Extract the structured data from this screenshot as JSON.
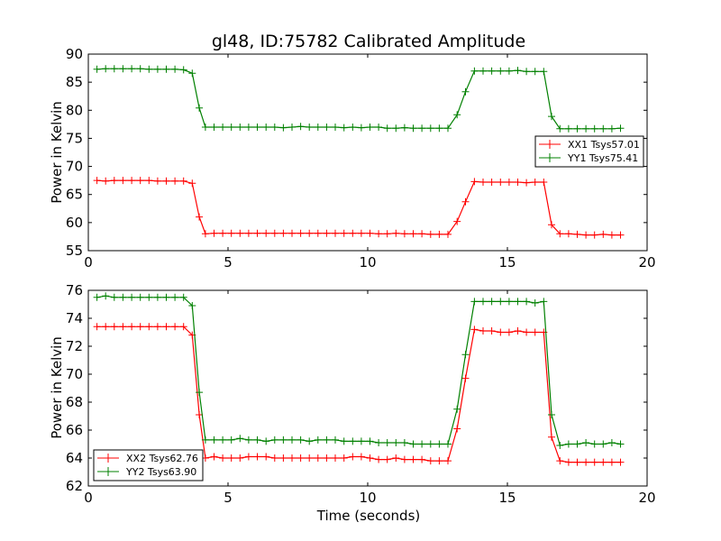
{
  "chart_data": {
    "title": "gl48, ID:75782 Calibrated Amplitude",
    "xlabel": "Time (seconds)",
    "type": "line",
    "x": [
      0.31,
      0.62,
      0.93,
      1.24,
      1.55,
      1.86,
      2.17,
      2.48,
      2.79,
      3.1,
      3.41,
      3.72,
      3.97,
      4.19,
      4.5,
      4.81,
      5.12,
      5.43,
      5.74,
      6.05,
      6.36,
      6.67,
      6.98,
      7.29,
      7.6,
      7.91,
      8.22,
      8.53,
      8.84,
      9.15,
      9.46,
      9.77,
      10.08,
      10.39,
      10.7,
      11.01,
      11.32,
      11.63,
      11.94,
      12.25,
      12.56,
      12.87,
      13.2,
      13.5,
      13.82,
      14.13,
      14.44,
      14.75,
      15.06,
      15.37,
      15.68,
      15.99,
      16.3,
      16.58,
      16.88,
      17.19,
      17.5,
      17.81,
      18.12,
      18.43,
      18.74,
      19.05
    ],
    "panels": [
      {
        "ylabel": "Power in Kelvin",
        "xlim": [
          0,
          20
        ],
        "ylim": [
          55,
          90
        ],
        "xticks": [
          "0",
          "5",
          "10",
          "15",
          "20"
        ],
        "yticks": [
          "55",
          "60",
          "65",
          "70",
          "75",
          "80",
          "85",
          "90"
        ],
        "legend_position": "center-right",
        "series": [
          {
            "name": "XX1 Tsys57.01",
            "color": "#ff0000",
            "values": [
              67.5,
              67.4,
              67.5,
              67.5,
              67.5,
              67.5,
              67.5,
              67.4,
              67.4,
              67.4,
              67.4,
              67.0,
              61.0,
              58.0,
              58.1,
              58.1,
              58.1,
              58.1,
              58.1,
              58.1,
              58.1,
              58.1,
              58.1,
              58.1,
              58.1,
              58.1,
              58.1,
              58.1,
              58.1,
              58.1,
              58.1,
              58.1,
              58.1,
              58.0,
              58.0,
              58.1,
              58.0,
              58.0,
              58.0,
              57.9,
              57.9,
              57.9,
              60.2,
              63.7,
              67.3,
              67.2,
              67.2,
              67.2,
              67.2,
              67.2,
              67.1,
              67.2,
              67.2,
              59.6,
              58.0,
              58.0,
              57.9,
              57.8,
              57.8,
              57.9,
              57.8,
              57.8
            ]
          },
          {
            "name": "YY1 Tsys75.41",
            "color": "#008000",
            "values": [
              87.3,
              87.4,
              87.4,
              87.4,
              87.4,
              87.4,
              87.3,
              87.3,
              87.3,
              87.3,
              87.2,
              86.6,
              80.4,
              77.0,
              77.0,
              77.0,
              77.0,
              77.0,
              77.0,
              77.0,
              77.0,
              77.0,
              76.9,
              77.0,
              77.1,
              77.0,
              77.0,
              77.0,
              77.0,
              76.9,
              77.0,
              76.9,
              77.0,
              77.0,
              76.8,
              76.8,
              76.9,
              76.8,
              76.8,
              76.8,
              76.8,
              76.8,
              79.2,
              83.3,
              87.0,
              87.0,
              87.0,
              87.0,
              87.0,
              87.1,
              86.9,
              86.9,
              86.9,
              78.9,
              76.7,
              76.7,
              76.7,
              76.7,
              76.7,
              76.7,
              76.7,
              76.8
            ]
          }
        ]
      },
      {
        "ylabel": "Power in Kelvin",
        "xlabel": "Time (seconds)",
        "xlim": [
          0,
          20
        ],
        "ylim": [
          62,
          76
        ],
        "xticks": [
          "0",
          "5",
          "10",
          "15",
          "20"
        ],
        "yticks": [
          "62",
          "64",
          "66",
          "68",
          "70",
          "72",
          "74",
          "76"
        ],
        "legend_position": "lower-left",
        "series": [
          {
            "name": "XX2 Tsys62.76",
            "color": "#ff0000",
            "values": [
              73.4,
              73.4,
              73.4,
              73.4,
              73.4,
              73.4,
              73.4,
              73.4,
              73.4,
              73.4,
              73.4,
              72.8,
              67.1,
              64.0,
              64.1,
              64.0,
              64.0,
              64.0,
              64.1,
              64.1,
              64.1,
              64.0,
              64.0,
              64.0,
              64.0,
              64.0,
              64.0,
              64.0,
              64.0,
              64.0,
              64.1,
              64.1,
              64.0,
              63.9,
              63.9,
              64.0,
              63.9,
              63.9,
              63.9,
              63.8,
              63.8,
              63.8,
              66.1,
              69.7,
              73.2,
              73.1,
              73.1,
              73.0,
              73.0,
              73.1,
              73.0,
              73.0,
              73.0,
              65.5,
              63.8,
              63.7,
              63.7,
              63.7,
              63.7,
              63.7,
              63.7,
              63.7
            ]
          },
          {
            "name": "YY2 Tsys63.90",
            "color": "#008000",
            "values": [
              75.5,
              75.6,
              75.5,
              75.5,
              75.5,
              75.5,
              75.5,
              75.5,
              75.5,
              75.5,
              75.5,
              74.9,
              68.7,
              65.3,
              65.3,
              65.3,
              65.3,
              65.4,
              65.3,
              65.3,
              65.2,
              65.3,
              65.3,
              65.3,
              65.3,
              65.2,
              65.3,
              65.3,
              65.3,
              65.2,
              65.2,
              65.2,
              65.2,
              65.1,
              65.1,
              65.1,
              65.1,
              65.0,
              65.0,
              65.0,
              65.0,
              65.0,
              67.5,
              71.4,
              75.2,
              75.2,
              75.2,
              75.2,
              75.2,
              75.2,
              75.2,
              75.1,
              75.2,
              67.1,
              64.9,
              65.0,
              65.0,
              65.1,
              65.0,
              65.0,
              65.1,
              65.0
            ]
          }
        ]
      }
    ]
  }
}
